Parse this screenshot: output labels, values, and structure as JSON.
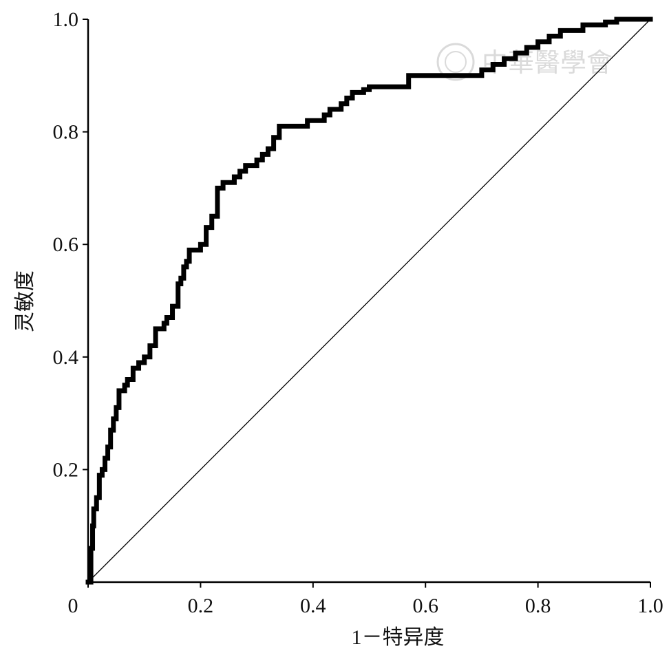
{
  "chart_data": {
    "type": "line",
    "title": "",
    "xlabel": "1－特异度",
    "ylabel": "灵敏度",
    "xlim": [
      0,
      1.0
    ],
    "ylim": [
      0,
      1.0
    ],
    "x_ticks": [
      "0",
      "0.2",
      "0.4",
      "0.6",
      "0.8",
      "1.0"
    ],
    "y_ticks": [
      "0.2",
      "0.4",
      "0.6",
      "0.8",
      "1.0"
    ],
    "grid": false,
    "legend": "none",
    "colors": {
      "roc": "#000000",
      "reference": "#000000",
      "watermark": "#d6d6d6"
    },
    "series": [
      {
        "x": [
          0,
          0.005,
          0.008,
          0.01,
          0.015,
          0.02,
          0.025,
          0.03,
          0.035,
          0.04,
          0.045,
          0.05,
          0.055,
          0.06,
          0.065,
          0.07,
          0.075,
          0.08,
          0.09,
          0.1,
          0.11,
          0.12,
          0.13,
          0.135,
          0.14,
          0.15,
          0.16,
          0.165,
          0.17,
          0.175,
          0.18,
          0.19,
          0.2,
          0.21,
          0.22,
          0.23,
          0.24,
          0.25,
          0.26,
          0.27,
          0.28,
          0.29,
          0.3,
          0.31,
          0.32,
          0.33,
          0.34,
          0.35,
          0.36,
          0.37,
          0.38,
          0.39,
          0.4,
          0.41,
          0.42,
          0.43,
          0.44,
          0.45,
          0.46,
          0.47,
          0.48,
          0.49,
          0.5,
          0.52,
          0.54,
          0.56,
          0.57,
          0.58,
          0.6,
          0.62,
          0.64,
          0.66,
          0.68,
          0.7,
          0.72,
          0.74,
          0.76,
          0.78,
          0.8,
          0.82,
          0.84,
          0.86,
          0.88,
          0.9,
          0.92,
          0.94,
          0.96,
          0.98,
          1.0
        ],
        "y": [
          0,
          0.06,
          0.1,
          0.13,
          0.15,
          0.19,
          0.2,
          0.22,
          0.24,
          0.27,
          0.29,
          0.31,
          0.34,
          0.34,
          0.35,
          0.36,
          0.36,
          0.38,
          0.39,
          0.4,
          0.42,
          0.45,
          0.45,
          0.46,
          0.47,
          0.49,
          0.53,
          0.54,
          0.56,
          0.57,
          0.59,
          0.59,
          0.6,
          0.63,
          0.65,
          0.7,
          0.71,
          0.71,
          0.72,
          0.73,
          0.74,
          0.74,
          0.75,
          0.76,
          0.77,
          0.79,
          0.81,
          0.81,
          0.81,
          0.81,
          0.81,
          0.82,
          0.82,
          0.82,
          0.83,
          0.84,
          0.84,
          0.85,
          0.86,
          0.87,
          0.87,
          0.875,
          0.88,
          0.88,
          0.88,
          0.88,
          0.9,
          0.9,
          0.9,
          0.9,
          0.9,
          0.9,
          0.9,
          0.91,
          0.92,
          0.93,
          0.94,
          0.95,
          0.96,
          0.97,
          0.98,
          0.98,
          0.99,
          0.99,
          0.995,
          1.0,
          1.0,
          1.0,
          1.0
        ]
      },
      {
        "x": [
          0,
          1.0
        ],
        "y": [
          0,
          1.0
        ]
      }
    ],
    "watermark": "中華醫學會"
  }
}
